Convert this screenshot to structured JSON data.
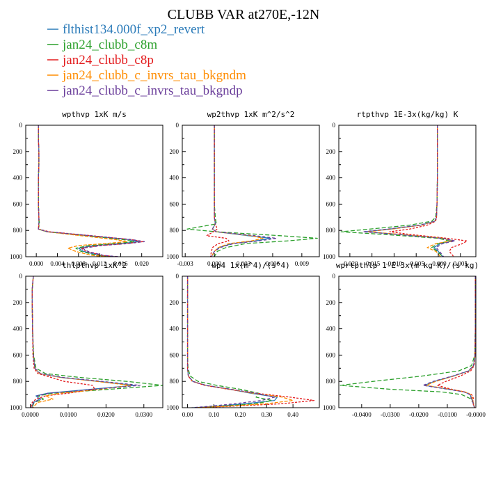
{
  "figure_title": "CLUBB VAR at270E,-12N",
  "legend": [
    {
      "label": "flthist134.000f_xp2_revert",
      "color": "#2b7bb9"
    },
    {
      "label": "jan24_clubb_c8m",
      "color": "#2ca02c"
    },
    {
      "label": "jan24_clubb_c8p",
      "color": "#e31a1c"
    },
    {
      "label": "jan24_clubb_c_invrs_tau_bkgndm",
      "color": "#ff8c00"
    },
    {
      "label": "jan24_clubb_c_invrs_tau_bkgndp",
      "color": "#6a3d9a"
    }
  ],
  "chart_data": [
    {
      "type": "line",
      "title": "wpthvp   1xK m/s",
      "xlim": [
        -0.002,
        0.024
      ],
      "ylim": [
        1000,
        0
      ],
      "xticks": [
        0.0,
        0.004,
        0.008,
        0.012,
        0.016,
        0.02
      ],
      "xtick_labels": [
        "0.000",
        "0.004",
        "0.008",
        "0.012",
        "0.016",
        "0.020"
      ],
      "yticks": [
        0,
        200,
        400,
        600,
        800,
        1000
      ],
      "ytick_labels": [
        "0",
        "200",
        "400",
        "600",
        "800",
        "1000"
      ],
      "y": [
        0,
        100,
        200,
        300,
        400,
        500,
        600,
        700,
        750,
        790,
        810,
        840,
        870,
        885,
        900,
        915,
        935,
        960,
        990,
        1000
      ],
      "series": [
        {
          "name": "flthist134.000f_xp2_revert",
          "x": [
            0.0004,
            0.0004,
            0.0005,
            0.0005,
            0.0004,
            0.0004,
            0.0004,
            0.0005,
            0.0005,
            0.0004,
            0.002,
            0.01,
            0.0175,
            0.0195,
            0.016,
            0.011,
            0.008,
            0.009,
            0.012,
            0.015
          ]
        },
        {
          "name": "jan24_clubb_c8m",
          "x": [
            0.0004,
            0.0004,
            0.0005,
            0.0005,
            0.0004,
            0.0004,
            0.0004,
            0.0005,
            0.0006,
            0.0004,
            0.002,
            0.0095,
            0.0165,
            0.0185,
            0.015,
            0.01,
            0.0075,
            0.0085,
            0.0115,
            0.0145
          ]
        },
        {
          "name": "jan24_clubb_c8p",
          "x": [
            0.0004,
            0.0004,
            0.0005,
            0.0005,
            0.0004,
            0.0004,
            0.0004,
            0.0005,
            0.0005,
            0.0004,
            0.0025,
            0.0105,
            0.018,
            0.0202,
            0.017,
            0.012,
            0.0085,
            0.0095,
            0.0125,
            0.0155
          ]
        },
        {
          "name": "jan24_clubb_c_invrs_tau_bkgndm",
          "x": [
            0.0004,
            0.0004,
            0.0005,
            0.0005,
            0.0004,
            0.0004,
            0.0004,
            0.0005,
            0.0005,
            0.0004,
            0.002,
            0.0085,
            0.015,
            0.0172,
            0.013,
            0.008,
            0.006,
            0.0075,
            0.0105,
            0.0135
          ]
        },
        {
          "name": "jan24_clubb_c_invrs_tau_bkgndp",
          "x": [
            0.0004,
            0.0004,
            0.0005,
            0.0005,
            0.0004,
            0.0004,
            0.0004,
            0.0005,
            0.0005,
            0.0004,
            0.0022,
            0.0102,
            0.0182,
            0.0205,
            0.0175,
            0.0125,
            0.0088,
            0.0098,
            0.0128,
            0.0158
          ]
        }
      ]
    },
    {
      "type": "line",
      "title": "wp2thvp   1xK m^2/s^2",
      "xlim": [
        -0.0033,
        0.0108
      ],
      "ylim": [
        1000,
        0
      ],
      "xticks": [
        -0.003,
        0.0,
        0.003,
        0.006,
        0.009
      ],
      "xtick_labels": [
        "-0.003",
        "0.000",
        "0.003",
        "0.006",
        "0.009"
      ],
      "yticks": [
        0,
        200,
        400,
        600,
        800,
        1000
      ],
      "ytick_labels": [
        "0",
        "200",
        "400",
        "600",
        "800",
        "1000"
      ],
      "y": [
        0,
        200,
        400,
        600,
        700,
        750,
        790,
        810,
        840,
        860,
        880,
        900,
        930,
        960,
        1000
      ],
      "series": [
        {
          "name": "flthist134.000f_xp2_revert",
          "x": [
            0.0,
            0.0,
            0.0,
            0.0,
            0.0,
            0.0001,
            -0.0002,
            0.0002,
            0.0035,
            0.0058,
            0.0042,
            0.0018,
            0.0005,
            0.0,
            -0.0003
          ]
        },
        {
          "name": "jan24_clubb_c8m",
          "x": [
            0.0,
            0.0,
            0.0,
            0.0,
            0.0001,
            0.0002,
            -0.0028,
            0.0002,
            0.0068,
            0.0106,
            0.0075,
            0.0032,
            0.0012,
            0.0003,
            0.0
          ]
        },
        {
          "name": "jan24_clubb_c8p",
          "x": [
            0.0,
            0.0,
            0.0,
            0.0,
            0.0,
            0.0001,
            0.0003,
            -0.0001,
            -0.0008,
            0.0012,
            0.0015,
            0.0004,
            -0.0002,
            -0.0003,
            -0.0004
          ]
        },
        {
          "name": "jan24_clubb_c_invrs_tau_bkgndm",
          "x": [
            0.0,
            0.0,
            0.0,
            0.0,
            0.0,
            0.0001,
            -0.0002,
            0.0002,
            0.0038,
            0.005,
            0.0038,
            0.0015,
            0.0004,
            0.0,
            -0.0003
          ]
        },
        {
          "name": "jan24_clubb_c_invrs_tau_bkgndp",
          "x": [
            0.0,
            0.0,
            0.0,
            0.0,
            0.0,
            0.0001,
            -0.0002,
            0.0002,
            0.0042,
            0.0064,
            0.0046,
            0.002,
            0.0006,
            0.0,
            -0.0003
          ]
        }
      ]
    },
    {
      "type": "line",
      "title": "rtpthvp   1E-3x(kg/kg) K",
      "xlim": [
        -0.0225,
        0.0085
      ],
      "ylim": [
        1000,
        0
      ],
      "xticks": [
        -0.02,
        -0.015,
        -0.01,
        -0.005,
        0.0,
        0.005
      ],
      "xtick_labels": [
        "-0.020",
        "-0.015",
        "-0.010",
        "-0.005",
        "-0.000",
        "0.005"
      ],
      "yticks": [
        0,
        200,
        400,
        600,
        800,
        1000
      ],
      "ytick_labels": [
        "0",
        "200",
        "400",
        "600",
        "800",
        "1000"
      ],
      "y": [
        0,
        200,
        400,
        600,
        700,
        730,
        760,
        790,
        810,
        830,
        860,
        880,
        900,
        930,
        960,
        1000
      ],
      "series": [
        {
          "name": "flthist134.000f_xp2_revert",
          "x": [
            -0.0002,
            -0.0002,
            -0.0002,
            -0.0003,
            -0.0004,
            -0.0008,
            -0.004,
            -0.011,
            -0.0165,
            -0.009,
            0.001,
            0.0035,
            0.0005,
            -0.001,
            0.0,
            0.001
          ]
        },
        {
          "name": "jan24_clubb_c8m",
          "x": [
            -0.0002,
            -0.0002,
            -0.0002,
            -0.0003,
            -0.0006,
            -0.0015,
            -0.0065,
            -0.0155,
            -0.022,
            -0.0125,
            0.0,
            0.0025,
            0.0,
            -0.0015,
            -0.0002,
            0.001
          ]
        },
        {
          "name": "jan24_clubb_c8p",
          "x": [
            -0.0002,
            -0.0002,
            -0.0002,
            -0.0003,
            -0.0004,
            -0.0006,
            -0.0025,
            -0.0065,
            -0.011,
            -0.0065,
            0.002,
            0.0065,
            0.0055,
            0.003,
            0.0025,
            0.0035
          ]
        },
        {
          "name": "jan24_clubb_c_invrs_tau_bkgndm",
          "x": [
            -0.0002,
            -0.0002,
            -0.0002,
            -0.0003,
            -0.0004,
            -0.0008,
            -0.0038,
            -0.0105,
            -0.016,
            -0.0085,
            0.0012,
            0.003,
            -0.0005,
            -0.0025,
            -0.0005,
            0.0005
          ]
        },
        {
          "name": "jan24_clubb_c_invrs_tau_bkgndp",
          "x": [
            -0.0002,
            -0.0002,
            -0.0002,
            -0.0003,
            -0.0004,
            -0.0008,
            -0.0042,
            -0.0115,
            -0.017,
            -0.0095,
            0.0008,
            0.0038,
            0.001,
            -0.0005,
            0.0003,
            0.0012
          ]
        }
      ]
    },
    {
      "type": "line",
      "title": "thlpthvp   1xK^2",
      "xlim": [
        -0.0012,
        0.035
      ],
      "ylim": [
        1000,
        0
      ],
      "xticks": [
        0.0,
        0.01,
        0.02,
        0.03
      ],
      "xtick_labels": [
        "0.0000",
        "0.0100",
        "0.0200",
        "0.0300"
      ],
      "yticks": [
        0,
        200,
        400,
        600,
        800,
        1000
      ],
      "ytick_labels": [
        "0",
        "200",
        "400",
        "600",
        "800",
        "1000"
      ],
      "y": [
        0,
        100,
        200,
        400,
        600,
        700,
        740,
        770,
        800,
        830,
        860,
        890,
        910,
        935,
        960,
        1000
      ],
      "series": [
        {
          "name": "flthist134.000f_xp2_revert",
          "x": [
            0.0008,
            0.0005,
            0.0005,
            0.0006,
            0.0008,
            0.0012,
            0.0025,
            0.008,
            0.018,
            0.0275,
            0.016,
            0.0045,
            0.0015,
            0.0025,
            0.0008,
            0.0004
          ]
        },
        {
          "name": "jan24_clubb_c8m",
          "x": [
            0.0008,
            0.0005,
            0.0005,
            0.0006,
            0.0009,
            0.0015,
            0.004,
            0.013,
            0.0255,
            0.035,
            0.021,
            0.006,
            0.002,
            0.0035,
            0.001,
            0.0005
          ]
        },
        {
          "name": "jan24_clubb_c8p",
          "x": [
            0.0008,
            0.0005,
            0.0005,
            0.0006,
            0.0007,
            0.001,
            0.002,
            0.0055,
            0.009,
            0.0165,
            0.017,
            0.01,
            0.004,
            0.0015,
            0.0005,
            0.0003
          ]
        },
        {
          "name": "jan24_clubb_c_invrs_tau_bkgndm",
          "x": [
            0.0008,
            0.0005,
            0.0005,
            0.0006,
            0.0008,
            0.0012,
            0.0025,
            0.008,
            0.0175,
            0.0265,
            0.0185,
            0.008,
            0.004,
            0.006,
            0.002,
            0.0006
          ]
        },
        {
          "name": "jan24_clubb_c_invrs_tau_bkgndp",
          "x": [
            0.0008,
            0.0005,
            0.0005,
            0.0006,
            0.0008,
            0.0012,
            0.0027,
            0.0085,
            0.019,
            0.029,
            0.017,
            0.005,
            0.0018,
            0.0028,
            0.0009,
            0.0004
          ]
        }
      ]
    },
    {
      "type": "line",
      "title": "wp4   1x(m^4)/(s^4)",
      "xlim": [
        -0.02,
        0.5
      ],
      "ylim": [
        1000,
        0
      ],
      "xticks": [
        0.0,
        0.1,
        0.2,
        0.3,
        0.4
      ],
      "xtick_labels": [
        "0.00",
        "0.10",
        "0.20",
        "0.30",
        "0.40"
      ],
      "yticks": [
        0,
        200,
        400,
        600,
        800,
        1000
      ],
      "ytick_labels": [
        "0",
        "200",
        "400",
        "600",
        "800",
        "1000"
      ],
      "y": [
        0,
        200,
        400,
        600,
        700,
        760,
        800,
        830,
        860,
        890,
        920,
        945,
        970,
        990,
        1000
      ],
      "series": [
        {
          "name": "flthist134.000f_xp2_revert",
          "x": [
            0.0,
            0.0,
            0.0,
            0.0,
            0.0,
            0.003,
            0.02,
            0.07,
            0.16,
            0.24,
            0.34,
            0.33,
            0.22,
            0.1,
            0.02
          ]
        },
        {
          "name": "jan24_clubb_c8m",
          "x": [
            0.0,
            0.0,
            0.0,
            0.0,
            0.002,
            0.01,
            0.04,
            0.11,
            0.2,
            0.27,
            0.26,
            0.32,
            0.26,
            0.12,
            0.03
          ]
        },
        {
          "name": "jan24_clubb_c8p",
          "x": [
            0.0,
            0.0,
            0.0,
            0.0,
            0.0,
            0.003,
            0.018,
            0.065,
            0.155,
            0.26,
            0.39,
            0.48,
            0.36,
            0.16,
            0.04
          ]
        },
        {
          "name": "jan24_clubb_c_invrs_tau_bkgndm",
          "x": [
            0.0,
            0.0,
            0.0,
            0.0,
            0.0,
            0.003,
            0.02,
            0.07,
            0.16,
            0.25,
            0.36,
            0.4,
            0.3,
            0.14,
            0.03
          ]
        },
        {
          "name": "jan24_clubb_c_invrs_tau_bkgndp",
          "x": [
            0.0,
            0.0,
            0.0,
            0.0,
            0.0,
            0.003,
            0.02,
            0.07,
            0.165,
            0.26,
            0.33,
            0.28,
            0.18,
            0.08,
            0.015
          ]
        }
      ]
    },
    {
      "type": "line",
      "title": "wprtpthlp   1-E-3x(m kg K)/(s kg)",
      "xlim": [
        -0.048,
        0.0
      ],
      "ylim": [
        1000,
        0
      ],
      "xticks": [
        -0.04,
        -0.03,
        -0.02,
        -0.01,
        0.0
      ],
      "xtick_labels": [
        "-0.0400",
        "-0.0300",
        "-0.0200",
        "-0.0100",
        "-0.0000"
      ],
      "yticks": [
        0,
        200,
        400,
        600,
        800,
        1000
      ],
      "ytick_labels": [
        "0",
        "200",
        "400",
        "600",
        "800",
        "1000"
      ],
      "y": [
        0,
        200,
        400,
        600,
        680,
        720,
        760,
        800,
        830,
        860,
        880,
        900,
        930,
        960,
        1000
      ],
      "series": [
        {
          "name": "flthist134.000f_xp2_revert",
          "x": [
            -0.0002,
            -0.0002,
            -0.0002,
            -0.0003,
            -0.0008,
            -0.0025,
            -0.008,
            -0.0145,
            -0.018,
            -0.0095,
            -0.004,
            -0.002,
            -0.0015,
            -0.001,
            -0.0005
          ]
        },
        {
          "name": "jan24_clubb_c8m",
          "x": [
            -0.0002,
            -0.0002,
            -0.0002,
            -0.0004,
            -0.0015,
            -0.006,
            -0.019,
            -0.036,
            -0.0475,
            -0.03,
            -0.012,
            -0.005,
            -0.002,
            -0.001,
            -0.0005
          ]
        },
        {
          "name": "jan24_clubb_c8p",
          "x": [
            -0.0002,
            -0.0002,
            -0.0002,
            -0.0003,
            -0.0006,
            -0.0018,
            -0.0055,
            -0.0105,
            -0.0135,
            -0.0085,
            -0.004,
            -0.0015,
            -0.0008,
            -0.0012,
            -0.0004
          ]
        },
        {
          "name": "jan24_clubb_c_invrs_tau_bkgndm",
          "x": [
            -0.0002,
            -0.0002,
            -0.0002,
            -0.0003,
            -0.0008,
            -0.0024,
            -0.0078,
            -0.014,
            -0.0175,
            -0.0092,
            -0.0038,
            -0.0018,
            -0.0012,
            -0.0009,
            -0.0004
          ]
        },
        {
          "name": "jan24_clubb_c_invrs_tau_bkgndp",
          "x": [
            -0.0002,
            -0.0002,
            -0.0002,
            -0.0003,
            -0.0008,
            -0.0026,
            -0.0082,
            -0.015,
            -0.0185,
            -0.0098,
            -0.0042,
            -0.0021,
            -0.0016,
            -0.001,
            -0.0005
          ]
        }
      ]
    }
  ]
}
